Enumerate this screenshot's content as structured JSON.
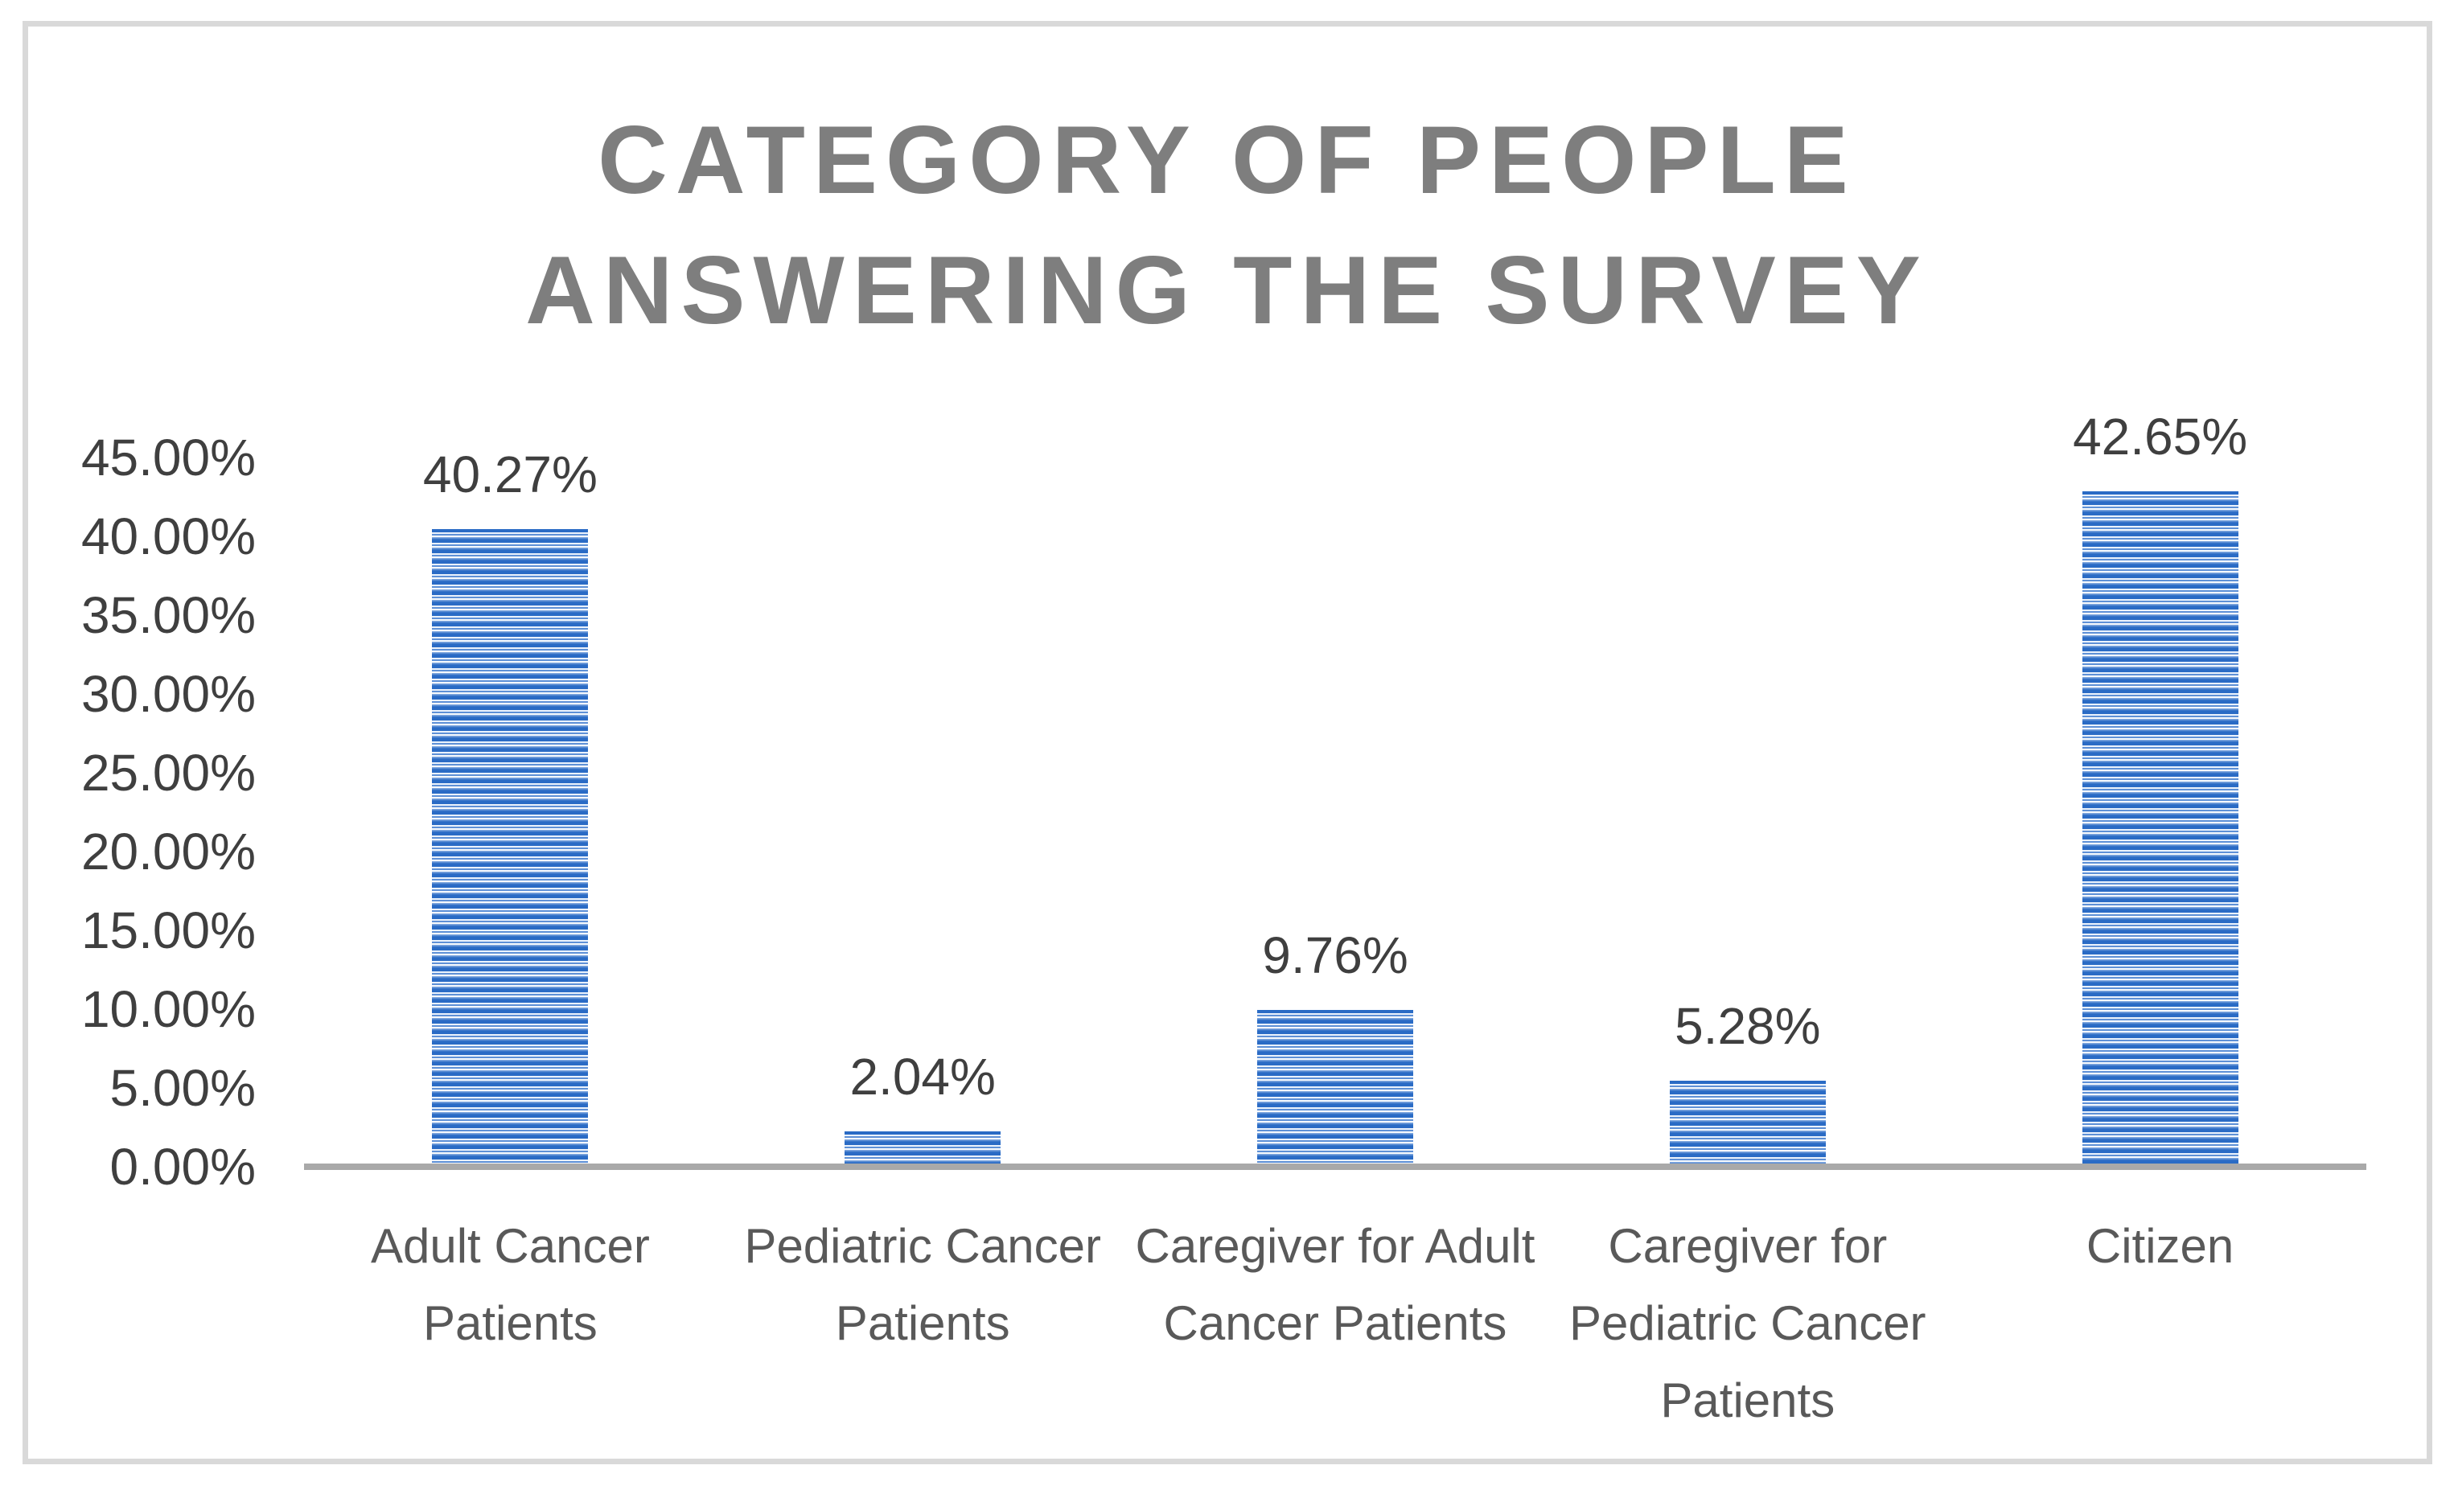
{
  "chart_data": {
    "type": "bar",
    "title": "CATEGORY OF PEOPLE ANSWERING THE SURVEY",
    "title_lines": [
      "CATEGORY OF PEOPLE",
      "ANSWERING THE SURVEY"
    ],
    "categories": [
      "Adult Cancer Patients",
      "Pediatric Cancer Patients",
      "Caregiver for Adult Cancer Patients",
      "Caregiver for Pediatric Cancer Patients",
      "Citizen"
    ],
    "values": [
      40.27,
      2.04,
      9.76,
      5.28,
      42.65
    ],
    "data_labels": [
      "40.27%",
      "2.04%",
      "9.76%",
      "5.28%",
      "42.65%"
    ],
    "y_ticks": [
      "45.00%",
      "40.00%",
      "35.00%",
      "30.00%",
      "25.00%",
      "20.00%",
      "15.00%",
      "10.00%",
      "5.00%",
      "0.00%"
    ],
    "y_tick_values": [
      45,
      40,
      35,
      30,
      25,
      20,
      15,
      10,
      5,
      0
    ],
    "ylim": [
      0,
      45
    ],
    "xlabel": "",
    "ylabel": "",
    "grid": false,
    "legend": false,
    "bar_pattern": "horizontal-stripes",
    "colors": {
      "bar_blue": "#2a6bc5",
      "bar_stripe_light": "#eef4fc",
      "axis_line": "#a9a9a9",
      "frame_border": "#d9d9d9",
      "title_text": "#7e7e7e",
      "tick_text": "#3f3f3f",
      "category_text": "#595959",
      "background": "#ffffff"
    }
  }
}
